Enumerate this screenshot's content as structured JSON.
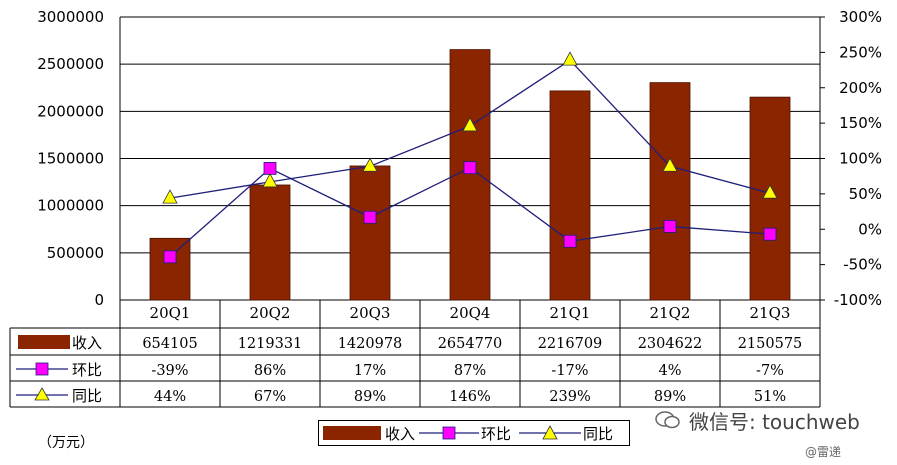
{
  "chart_data": {
    "type": "bar+line",
    "categories": [
      "20Q1",
      "20Q2",
      "20Q3",
      "20Q4",
      "21Q1",
      "21Q2",
      "21Q3"
    ],
    "left_axis": {
      "ylim": [
        0,
        3000000
      ],
      "ticks": [
        0,
        500000,
        1000000,
        1500000,
        2000000,
        2500000,
        3000000
      ],
      "tick_labels": [
        "0",
        "500000",
        "1000000",
        "1500000",
        "2000000",
        "2500000",
        "3000000"
      ]
    },
    "right_axis": {
      "ylim": [
        -100,
        300
      ],
      "ticks": [
        -100,
        -50,
        0,
        50,
        100,
        150,
        200,
        250,
        300
      ],
      "tick_labels": [
        "-100%",
        "-50%",
        "0%",
        "50%",
        "100%",
        "150%",
        "200%",
        "250%",
        "300%"
      ]
    },
    "series": [
      {
        "name": "收入",
        "kind": "bar",
        "axis": "left",
        "color": "#8b2500",
        "values": [
          654105,
          1219331,
          1420978,
          2654770,
          2216709,
          2304622,
          2150575
        ],
        "labels": [
          "654105",
          "1219331",
          "1420978",
          "2654770",
          "2216709",
          "2304622",
          "2150575"
        ]
      },
      {
        "name": "环比",
        "kind": "line",
        "axis": "right",
        "marker": "square",
        "color": "#1f1f7a",
        "marker_color": "#ff00ff",
        "values": [
          -39,
          86,
          17,
          87,
          -17,
          4,
          -7
        ],
        "labels": [
          "-39%",
          "86%",
          "17%",
          "87%",
          "-17%",
          "4%",
          "-7%"
        ]
      },
      {
        "name": "同比",
        "kind": "line",
        "axis": "right",
        "marker": "triangle",
        "color": "#1f1f7a",
        "marker_color": "#ffff00",
        "values": [
          44,
          67,
          89,
          146,
          239,
          89,
          51
        ],
        "labels": [
          "44%",
          "67%",
          "89%",
          "146%",
          "239%",
          "89%",
          "51%"
        ]
      }
    ],
    "unit": "（万元）"
  },
  "watermark": {
    "text": "微信号: touchweb",
    "brand": "@雷递"
  },
  "colors": {
    "bar": "#8b2500",
    "line": "#1f1f7a",
    "square": "#ff00ff",
    "triangle": "#ffff00"
  }
}
